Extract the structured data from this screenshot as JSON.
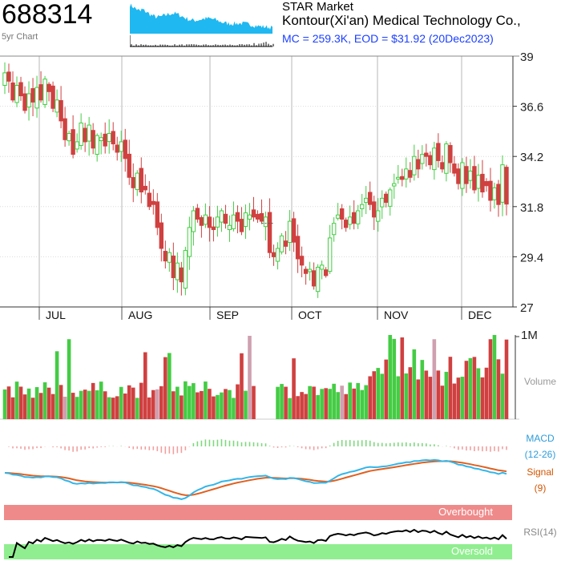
{
  "header": {
    "ticker": "688314",
    "chart_kind": "5yr Chart",
    "exchange": "STAR Market",
    "company": "Kontour(Xi'an) Medical Technology Co.,",
    "market_line": "MC = 259.3K, EOD = $31.92 (20Dec2023)"
  },
  "colors": {
    "up": "#44cc44",
    "down": "#d04040",
    "neutral": "#888888",
    "macd": "#33b5e8",
    "signal": "#e06020",
    "hist_pos": "#7ed87e",
    "hist_neg": "#f2a0a0",
    "overbought": "#ef8a8a",
    "oversold": "#90ee90",
    "sparkline": "#1fb8f0"
  },
  "chart_data": {
    "type": "candlestick",
    "price_axis": {
      "ticks": [
        "39",
        "36.6",
        "34.2",
        "31.8",
        "29.4",
        "27"
      ],
      "ylim": [
        27,
        39
      ]
    },
    "months": [
      "JUL",
      "AUG",
      "SEP",
      "OCT",
      "NOV",
      "DEC"
    ],
    "volume_axis": {
      "max_label": "1M",
      "label": "Volume"
    },
    "indicators": {
      "macd_label": "MACD",
      "macd_params": "(12-26)",
      "signal_label": "Signal",
      "signal_param": "(9)",
      "rsi_label": "RSI(14)",
      "overbought_label": "Overbought",
      "oversold_label": "Oversold"
    },
    "closes": [
      38.2,
      37.8,
      36.9,
      37.6,
      37.1,
      36.4,
      37.2,
      36.8,
      37.5,
      36.9,
      37.9,
      37.3,
      36.5,
      36.9,
      35.9,
      35.0,
      35.3,
      34.3,
      34.9,
      35.8,
      34.9,
      35.7,
      34.6,
      35.2,
      35.1,
      34.7,
      35.3,
      34.8,
      34.4,
      34.9,
      34.1,
      33.2,
      32.7,
      33.4,
      32.5,
      32.6,
      31.8,
      31.9,
      30.8,
      29.8,
      29.2,
      29.6,
      28.4,
      29.1,
      28.2,
      29.7,
      30.8,
      31.6,
      31.2,
      30.9,
      31.4,
      30.8,
      30.7,
      31.3,
      31.6,
      31.0,
      30.9,
      31.4,
      31.1,
      30.6,
      31.5,
      31.4,
      31.3,
      31.2,
      31.1,
      31.3,
      29.6,
      29.4,
      29.8,
      30.4,
      29.9,
      31.1,
      30.1,
      29.3,
      29.0,
      28.6,
      28.8,
      28.0,
      28.9,
      29.0,
      28.5,
      30.3,
      31.0,
      31.4,
      31.2,
      30.8,
      31.3,
      31.0,
      31.6,
      31.9,
      32.2,
      31.9,
      31.3,
      31.6,
      32.2,
      32.0,
      32.6,
      32.9,
      33.2,
      33.1,
      33.6,
      33.2,
      34.2,
      33.6,
      34.3,
      34.2,
      33.8,
      34.6,
      34.0,
      33.6,
      34.8,
      33.9,
      33.4,
      32.9,
      33.9,
      32.9,
      33.5,
      32.6,
      33.3,
      32.5,
      32.8,
      32.1,
      32.7,
      31.9,
      33.8,
      31.92
    ],
    "volume_note": "bars relative to 1M scale"
  }
}
